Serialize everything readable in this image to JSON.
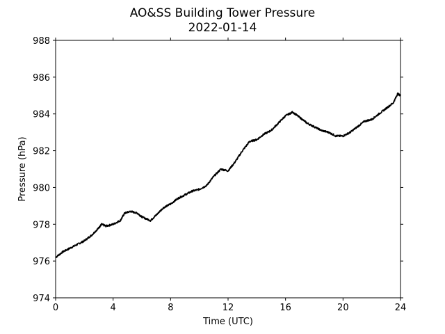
{
  "chart_data": {
    "type": "line",
    "title": "AO&SS Building Tower Pressure",
    "subtitle": "2022-01-14",
    "xlabel": "Time (UTC)",
    "ylabel": "Pressure (hPa)",
    "xlim": [
      0,
      24
    ],
    "ylim": [
      974,
      988
    ],
    "xticks": [
      0,
      4,
      8,
      12,
      16,
      20,
      24
    ],
    "yticks": [
      974,
      976,
      978,
      980,
      982,
      984,
      986,
      988
    ],
    "grid": false,
    "line_color": "#000000",
    "series": [
      {
        "x": [
          0,
          0.5,
          1,
          1.5,
          2,
          2.5,
          3,
          3.2,
          3.5,
          4,
          4.5,
          4.8,
          5.2,
          5.7,
          6,
          6.6,
          7,
          7.5,
          8,
          8.5,
          9,
          9.5,
          10,
          10.5,
          11,
          11.5,
          12,
          12.5,
          13,
          13.5,
          14,
          14.5,
          15,
          15.5,
          16,
          16.5,
          17,
          17.5,
          18,
          18.5,
          19,
          19.5,
          20,
          20.5,
          21,
          21.5,
          22,
          22.5,
          23,
          23.5,
          23.8,
          24
        ],
        "y": [
          976.2,
          976.5,
          976.7,
          976.9,
          977.1,
          977.4,
          977.8,
          978.0,
          977.9,
          978.0,
          978.2,
          978.6,
          978.7,
          978.6,
          978.4,
          978.2,
          978.5,
          978.9,
          979.1,
          979.4,
          979.6,
          979.8,
          979.9,
          980.1,
          980.6,
          981.0,
          980.9,
          981.4,
          982.0,
          982.5,
          982.6,
          982.9,
          983.1,
          983.5,
          983.9,
          984.1,
          983.8,
          983.5,
          983.3,
          983.1,
          983.0,
          982.8,
          982.8,
          983.0,
          983.3,
          983.6,
          983.7,
          984.0,
          984.3,
          984.6,
          985.1,
          985.0
        ]
      }
    ]
  }
}
